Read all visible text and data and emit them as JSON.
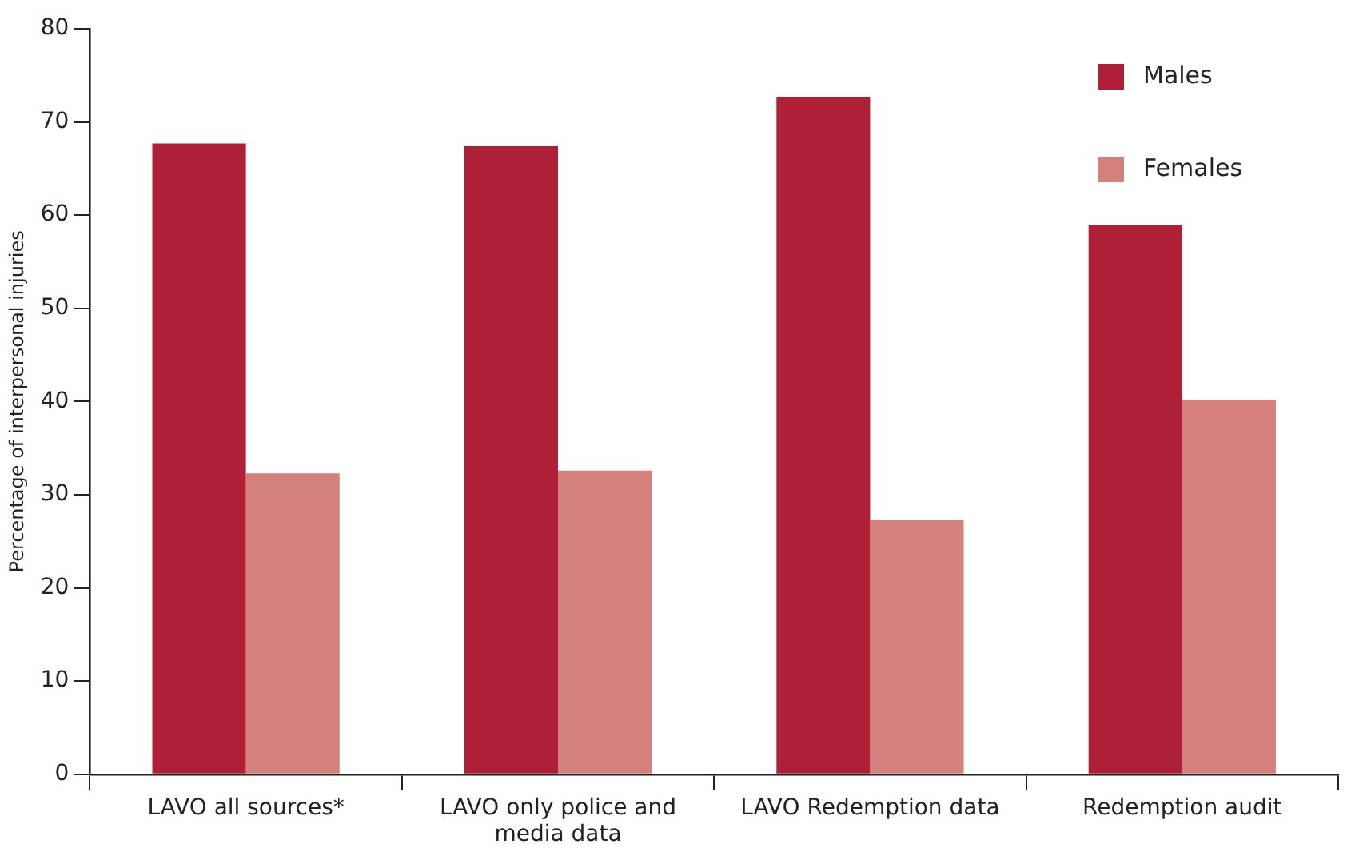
{
  "chart_data": {
    "type": "bar",
    "ylabel": "Percentage of interpersonal injuries",
    "categories": [
      "LAVO all sources*",
      "LAVO only police and media data",
      "LAVO Redemption data",
      "Redemption audit"
    ],
    "series": [
      {
        "name": "Males",
        "color": "#b01f38",
        "values": [
          67.7,
          67.4,
          72.7,
          58.9
        ]
      },
      {
        "name": "Females",
        "color": "#d4807c",
        "values": [
          32.3,
          32.6,
          27.3,
          40.2
        ]
      }
    ],
    "ylim": [
      0,
      80
    ],
    "yticks": [
      0,
      10,
      20,
      30,
      40,
      50,
      60,
      70,
      80
    ],
    "grid": false,
    "legend": "top right"
  }
}
